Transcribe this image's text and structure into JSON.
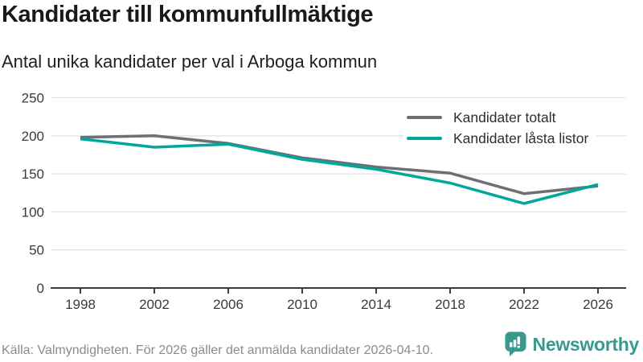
{
  "chart_data": {
    "type": "line",
    "title": "Kandidater till kommunfullmäktige",
    "subtitle": "Antal unika kandidater per val i Arboga kommun",
    "x": [
      1998,
      2002,
      2006,
      2010,
      2014,
      2018,
      2022,
      2026
    ],
    "series": [
      {
        "name": "Kandidater totalt",
        "color": "#6c7073",
        "values": [
          198,
          200,
          190,
          171,
          159,
          151,
          124,
          134
        ]
      },
      {
        "name": "Kandidater låsta listor",
        "color": "#00a79b",
        "values": [
          196,
          185,
          189,
          169,
          156,
          138,
          111,
          136
        ]
      }
    ],
    "xlabel": "",
    "ylabel": "",
    "ylim": [
      0,
      250
    ],
    "yticks": [
      0,
      50,
      100,
      150,
      200,
      250
    ],
    "grid": "horizontal",
    "legend_position": "top-right-inside"
  },
  "footer": {
    "source": "Källa: Valmyndigheten. För 2026 gäller det anmälda kandidater 2026-04-10.",
    "brand": "Newsworthy"
  },
  "colors": {
    "grid": "#e3e3e3",
    "axis": "#3d3d3d",
    "tick_text": "#3a3a3a",
    "brand": "#389a8f"
  }
}
